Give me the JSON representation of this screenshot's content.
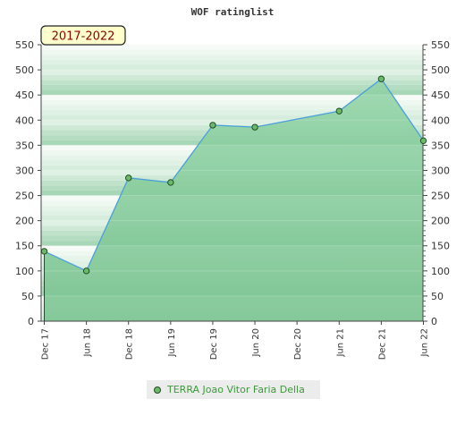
{
  "chart_data": {
    "type": "area",
    "title": "WOF ratinglist",
    "badge": "2017-2022",
    "x_labels": [
      "Dec 17",
      "Jun 18",
      "Dec 18",
      "Jun 19",
      "Dec 19",
      "Jun 20",
      "Dec 20",
      "Jun 21",
      "Dec 21",
      "Jun 22"
    ],
    "series": [
      {
        "name": "TERRA Joao Vitor Faria Della",
        "points": [
          {
            "x": "Dec 17",
            "y": 139
          },
          {
            "x": "Jun 18",
            "y": 100
          },
          {
            "x": "Dec 18",
            "y": 285
          },
          {
            "x": "Jun 19",
            "y": 276
          },
          {
            "x": "Dec 19",
            "y": 390
          },
          {
            "x": "Jun 20",
            "y": 386
          },
          {
            "x": "Jun 21",
            "y": 418
          },
          {
            "x": "Dec 21",
            "y": 482
          },
          {
            "x": "Jun 22",
            "y": 359
          }
        ]
      }
    ],
    "ylim": [
      0,
      550
    ],
    "y_ticks": [
      0,
      50,
      100,
      150,
      200,
      250,
      300,
      350,
      400,
      450,
      500,
      550
    ],
    "y_axis_right": true,
    "grid": false,
    "legend_position": "bottom",
    "colors": {
      "area_fill": "#7cc492",
      "line": "#4a9fd8",
      "marker_fill": "#6cb86c",
      "marker_stroke": "#1f4f1f",
      "band_dark": "#bde2c8",
      "band_light": "#e6f4ea",
      "badge_bg": "#ffffcc"
    }
  }
}
